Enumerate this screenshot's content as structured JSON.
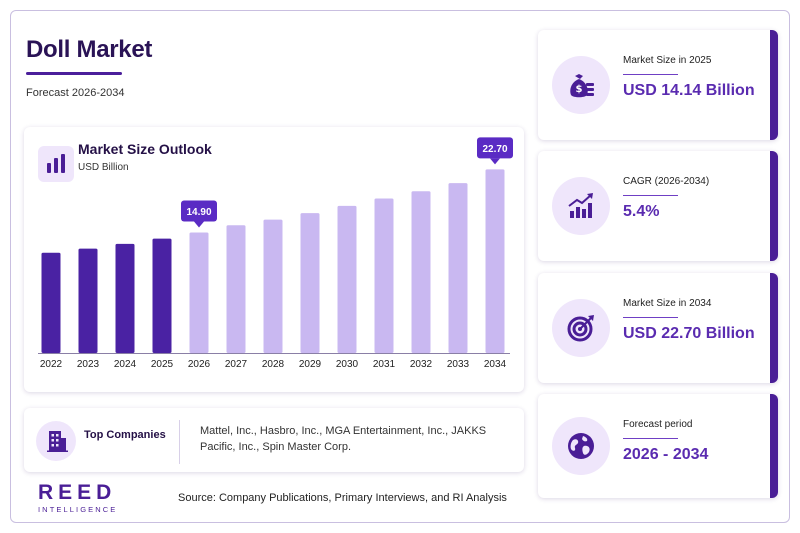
{
  "header": {
    "title": "Doll Market",
    "subtitle": "Forecast 2026-2034"
  },
  "chart": {
    "title": "Market Size Outlook",
    "unit": "USD Billion",
    "icon": "bar-chart-icon"
  },
  "chart_data": {
    "type": "bar",
    "title": "Market Size Outlook",
    "ylabel": "USD Billion",
    "categories": [
      "2022",
      "2023",
      "2024",
      "2025",
      "2026",
      "2027",
      "2028",
      "2029",
      "2030",
      "2031",
      "2032",
      "2033",
      "2034"
    ],
    "values": [
      12.4,
      12.9,
      13.5,
      14.14,
      14.9,
      15.8,
      16.5,
      17.3,
      18.2,
      19.1,
      20.0,
      21.0,
      22.7
    ],
    "highlighted_labels": [
      {
        "category": "2026",
        "label": "14.90"
      },
      {
        "category": "2034",
        "label": "22.70"
      }
    ],
    "colors": {
      "historical": "#4a22a3",
      "forecast": "#c9b8f1",
      "callout": "#5a2bc4"
    },
    "ylim": [
      0,
      23
    ],
    "grid": false,
    "legend": "none"
  },
  "companies": {
    "label": "Top Companies",
    "text": "Mattel, Inc., Hasbro, Inc., MGA Entertainment, Inc., JAKKS Pacific, Inc., Spin Master Corp.",
    "icon": "building-icon"
  },
  "kpis": [
    {
      "label": "Market Size in 2025",
      "value": "USD 14.14 Billion",
      "icon": "money-bag-icon"
    },
    {
      "label": "CAGR (2026-2034)",
      "value": "5.4%",
      "icon": "growth-chart-icon"
    },
    {
      "label": "Market Size in 2034",
      "value": "USD 22.70 Billion",
      "icon": "target-icon"
    },
    {
      "label": "Forecast period",
      "value": "2026 - 2034",
      "icon": "globe-icon"
    }
  ],
  "footer": {
    "brand": "REED",
    "brand_sub": "INTELLIGENCE",
    "source": "Source: Company Publications, Primary Interviews, and RI Analysis"
  },
  "colors": {
    "accent": "#4a1e96",
    "value_text": "#5a2bb0",
    "icon_bg": "#efe6fb"
  }
}
